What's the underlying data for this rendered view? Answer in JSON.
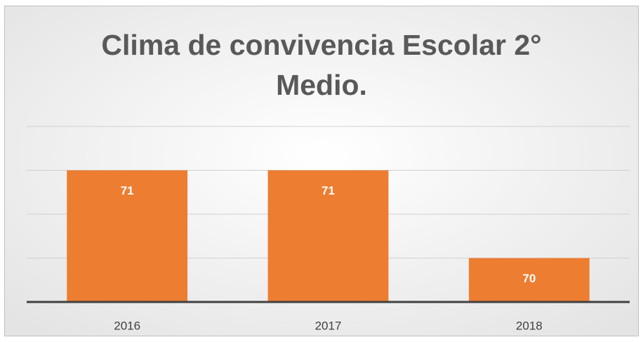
{
  "chart_data": {
    "type": "bar",
    "title": "Clima de convivencia Escolar 2° Medio.",
    "categories": [
      "2016",
      "2017",
      "2018"
    ],
    "values": [
      71,
      71,
      70
    ],
    "color": "#ed7d31",
    "ylim": [
      69.5,
      71.5
    ],
    "yticks": [
      69.5,
      70,
      70.5,
      71,
      71.5
    ],
    "grid": true,
    "show_tick_labels": false
  }
}
